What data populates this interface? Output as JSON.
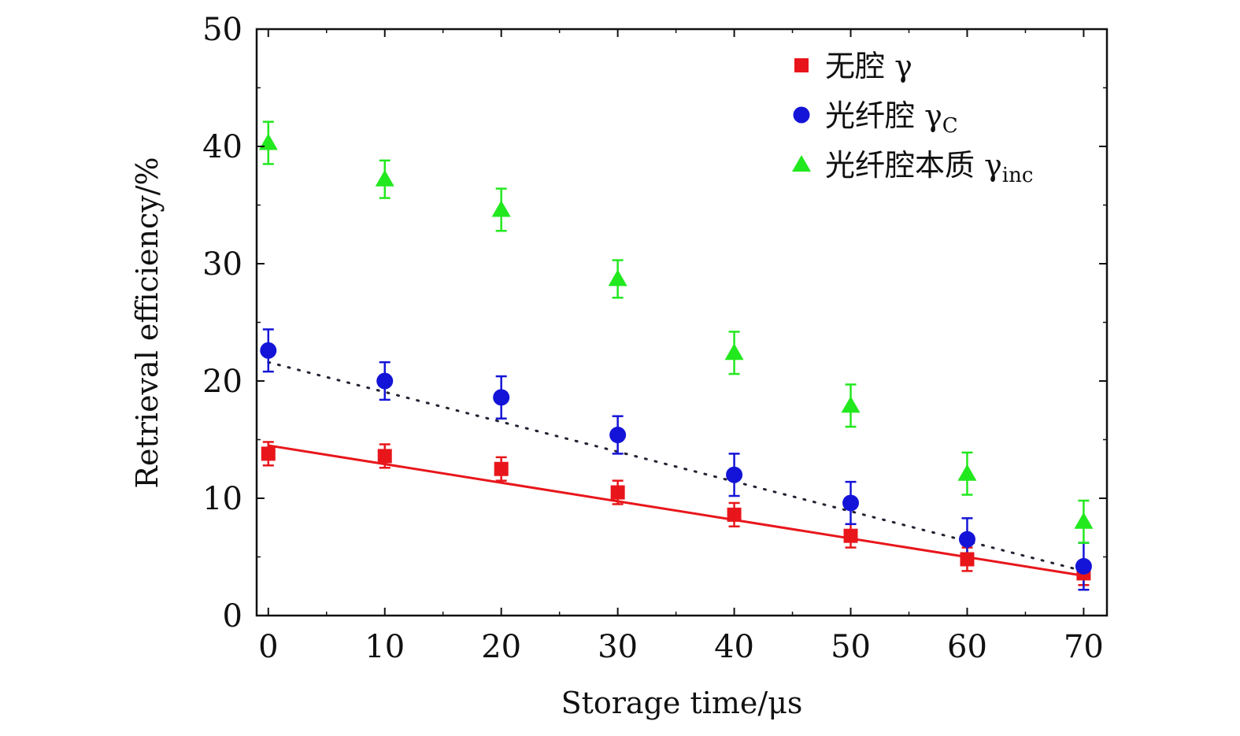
{
  "chart_data": {
    "type": "scatter",
    "xlabel": "Storage time/μs",
    "ylabel": "Retrieval efficiency/%",
    "xlim": [
      -1,
      72
    ],
    "ylim": [
      0,
      50
    ],
    "xticks": [
      0,
      10,
      20,
      30,
      40,
      50,
      60,
      70
    ],
    "yticks": [
      0,
      10,
      20,
      30,
      40,
      50
    ],
    "xtick_labels": [
      "0",
      "10",
      "20",
      "30",
      "40",
      "50",
      "60",
      "70"
    ],
    "ytick_labels": [
      "0",
      "10",
      "20",
      "30",
      "40",
      "50"
    ],
    "grid": false,
    "legend_position": "top-right",
    "series": [
      {
        "name": "无腔 γ",
        "legend_text": "无腔 γ",
        "legend_sub": "",
        "marker": "square",
        "color": "#e8161b",
        "x": [
          0,
          10,
          20,
          30,
          40,
          50,
          60,
          70
        ],
        "y": [
          13.8,
          13.6,
          12.5,
          10.5,
          8.6,
          6.8,
          4.8,
          3.6
        ],
        "yerr": [
          1.0,
          1.0,
          1.0,
          1.0,
          1.0,
          1.0,
          1.0,
          1.0
        ],
        "fit": {
          "style": "solid",
          "x": [
            0,
            70
          ],
          "y": [
            14.5,
            3.4
          ]
        }
      },
      {
        "name": "光纤腔 γC",
        "legend_text": "光纤腔 γ",
        "legend_sub": "C",
        "marker": "circle",
        "color": "#1414d8",
        "x": [
          0,
          10,
          20,
          30,
          40,
          50,
          60,
          70
        ],
        "y": [
          22.6,
          20.0,
          18.6,
          15.4,
          12.0,
          9.6,
          6.5,
          4.2
        ],
        "yerr": [
          1.8,
          1.6,
          1.8,
          1.6,
          1.8,
          1.8,
          1.8,
          2.0
        ],
        "fit": {
          "style": "dotted",
          "x": [
            0,
            70
          ],
          "y": [
            21.6,
            3.8
          ]
        }
      },
      {
        "name": "光纤腔本质 γinc",
        "legend_text": "光纤腔本质 γ",
        "legend_sub": "inc",
        "marker": "triangle",
        "color": "#22e81e",
        "x": [
          0,
          10,
          20,
          30,
          40,
          50,
          60,
          70
        ],
        "y": [
          40.3,
          37.2,
          34.6,
          28.7,
          22.4,
          17.9,
          12.1,
          8.0
        ],
        "yerr": [
          1.8,
          1.6,
          1.8,
          1.6,
          1.8,
          1.8,
          1.8,
          1.8
        ]
      }
    ]
  }
}
